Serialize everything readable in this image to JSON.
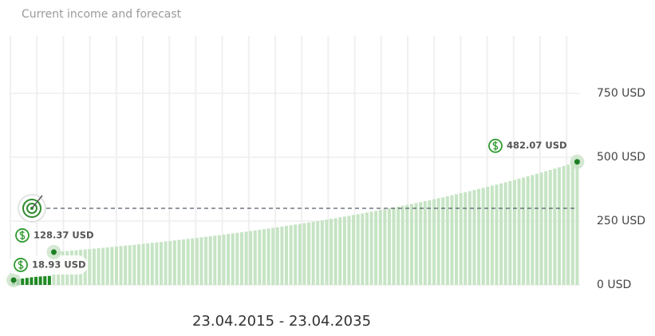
{
  "chart_data": {
    "type": "bar",
    "title": "Current income and forecast",
    "period": "23.04.2015 - 23.04.2035",
    "ylim": [
      0,
      1000
    ],
    "yticks": [
      {
        "value": 0,
        "label": "0 USD"
      },
      {
        "value": 250,
        "label": "250 USD"
      },
      {
        "value": 500,
        "label": "500 USD"
      },
      {
        "value": 750,
        "label": "750 USD"
      }
    ],
    "grid": true,
    "target": 300,
    "series": [
      {
        "color": "#1f8a24",
        "values": [
          18.93,
          22.4,
          25.1,
          27.6,
          29.8,
          31.5,
          33.0,
          34.2,
          35.3
        ],
        "value_labels": [
          "18.93 USD",
          null,
          null,
          null,
          null,
          null,
          null,
          null,
          null
        ]
      },
      {
        "color": "#c6e4c4",
        "values": [
          128.37,
          129.8,
          131.3,
          132.8,
          134.3,
          135.8,
          137.4,
          138.9,
          140.5,
          142.1,
          143.7,
          145.4,
          147.0,
          148.7,
          150.4,
          152.1,
          153.8,
          155.6,
          157.3,
          159.1,
          160.9,
          162.8,
          164.6,
          166.5,
          168.4,
          170.3,
          172.2,
          174.2,
          176.2,
          178.2,
          180.2,
          182.3,
          184.3,
          186.4,
          188.5,
          190.7,
          192.9,
          195.0,
          197.3,
          199.5,
          201.8,
          204.1,
          206.4,
          208.7,
          211.1,
          213.5,
          215.9,
          218.4,
          220.9,
          223.4,
          225.9,
          228.5,
          231.1,
          233.7,
          236.4,
          239.1,
          241.8,
          244.5,
          247.3,
          250.1,
          253.0,
          255.8,
          258.8,
          261.7,
          264.7,
          267.7,
          270.7,
          273.8,
          276.9,
          280.1,
          283.2,
          286.5,
          289.7,
          293.0,
          296.3,
          299.7,
          303.1,
          306.6,
          310.1,
          313.6,
          317.2,
          320.8,
          324.4,
          328.1,
          331.8,
          335.6,
          339.4,
          343.3,
          347.2,
          351.1,
          355.1,
          359.2,
          363.2,
          367.4,
          371.5,
          375.8,
          380.0,
          384.4,
          388.7,
          393.1,
          397.6,
          402.1,
          406.7,
          411.3,
          416.0,
          420.7,
          425.5,
          430.4,
          435.3,
          440.2,
          445.2,
          450.3,
          455.4,
          460.6,
          465.8,
          471.1,
          476.5,
          482.07
        ],
        "value_labels": [
          "128.37 USD",
          null,
          null,
          null,
          null,
          null,
          null,
          null,
          null,
          null,
          null,
          null,
          null,
          null,
          null,
          null,
          null,
          null,
          null,
          null,
          null,
          null,
          null,
          null,
          null,
          null,
          null,
          null,
          null,
          null,
          null,
          null,
          null,
          null,
          null,
          null,
          null,
          null,
          null,
          null,
          null,
          null,
          null,
          null,
          null,
          null,
          null,
          null,
          null,
          null,
          null,
          null,
          null,
          null,
          null,
          null,
          null,
          null,
          null,
          null,
          null,
          null,
          null,
          null,
          null,
          null,
          null,
          null,
          null,
          null,
          null,
          null,
          null,
          null,
          null,
          null,
          null,
          null,
          null,
          null,
          null,
          null,
          null,
          null,
          null,
          null,
          null,
          null,
          null,
          null,
          null,
          null,
          null,
          null,
          null,
          null,
          null,
          null,
          null,
          null,
          null,
          null,
          null,
          null,
          null,
          null,
          null,
          null,
          null,
          null,
          null,
          null,
          null,
          null,
          null,
          null,
          null,
          "482.07 USD"
        ]
      }
    ]
  }
}
